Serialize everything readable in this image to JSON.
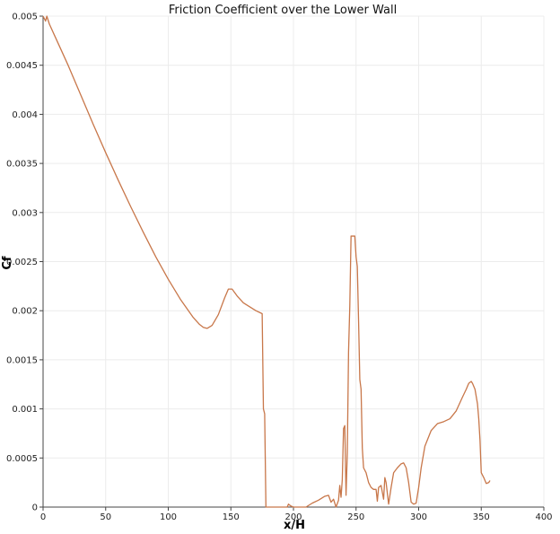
{
  "chart_data": {
    "type": "line",
    "title": "Friction Coefficient over the Lower Wall",
    "xlabel": "x/H",
    "ylabel": "Cf",
    "xlim": [
      0,
      400
    ],
    "ylim": [
      0,
      0.005
    ],
    "grid": true,
    "legend": "none",
    "x_ticks": [
      "0",
      "50",
      "100",
      "150",
      "200",
      "250",
      "300",
      "350",
      "400"
    ],
    "y_ticks": [
      "0",
      "0.0005",
      "0.001",
      "0.0015",
      "0.002",
      "0.0025",
      "0.003",
      "0.0035",
      "0.004",
      "0.0045",
      "0.005"
    ],
    "series": [
      {
        "color": "#c8774a",
        "x": [
          0,
          2,
          3,
          5,
          10,
          20,
          30,
          40,
          50,
          60,
          70,
          80,
          90,
          100,
          110,
          120,
          125,
          128,
          131,
          135,
          140,
          145,
          148,
          151,
          155,
          160,
          165,
          170,
          175,
          176,
          177,
          178,
          179,
          180,
          185,
          190,
          195,
          196,
          198,
          200,
          205,
          210,
          215,
          220,
          225,
          228,
          230,
          232,
          234,
          236,
          237,
          238,
          239,
          240,
          241,
          242,
          243,
          244,
          245,
          246,
          247,
          249,
          250,
          251,
          252,
          253,
          254,
          255,
          256,
          258,
          260,
          262,
          264,
          266,
          267,
          268,
          270,
          272,
          273,
          274,
          276,
          278,
          280,
          283,
          286,
          288,
          290,
          292,
          294,
          296,
          298,
          300,
          302,
          305,
          310,
          315,
          320,
          325,
          330,
          335,
          338,
          340,
          342,
          343,
          345,
          347,
          348,
          349,
          350,
          352,
          354,
          356,
          357
        ],
        "y": [
          0.005,
          0.00495,
          0.005,
          0.00492,
          0.00478,
          0.0045,
          0.0042,
          0.0039,
          0.00361,
          0.00333,
          0.00306,
          0.0028,
          0.00255,
          0.00232,
          0.00211,
          0.00193,
          0.00186,
          0.00183,
          0.00182,
          0.00185,
          0.00196,
          0.00213,
          0.00222,
          0.00222,
          0.00215,
          0.00208,
          0.00204,
          0.002,
          0.00197,
          0.001,
          0.00095,
          0.0,
          0.0,
          0.0,
          0.0,
          0.0,
          0.0,
          3e-05,
          1e-05,
          0.0,
          0.0,
          0.0,
          4e-05,
          7e-05,
          0.00011,
          0.00012,
          5e-05,
          8e-05,
          0.0,
          7e-05,
          0.00022,
          0.0001,
          0.00028,
          0.0008,
          0.00083,
          0.00012,
          0.00055,
          0.00158,
          0.00205,
          0.00276,
          0.00276,
          0.00276,
          0.00255,
          0.00245,
          0.0019,
          0.0013,
          0.0012,
          0.0006,
          0.0004,
          0.00035,
          0.00025,
          0.0002,
          0.00018,
          0.00018,
          6e-05,
          0.0002,
          0.00022,
          8e-05,
          0.0003,
          0.00025,
          3e-05,
          0.0002,
          0.00035,
          0.0004,
          0.00044,
          0.00045,
          0.0004,
          0.00025,
          5e-05,
          3e-05,
          4e-05,
          0.0002,
          0.0004,
          0.00062,
          0.00078,
          0.00085,
          0.00087,
          0.0009,
          0.00098,
          0.00112,
          0.0012,
          0.00126,
          0.00128,
          0.00126,
          0.0012,
          0.00105,
          0.0009,
          0.00068,
          0.00035,
          0.0003,
          0.00024,
          0.00025,
          0.00027
        ]
      }
    ]
  }
}
